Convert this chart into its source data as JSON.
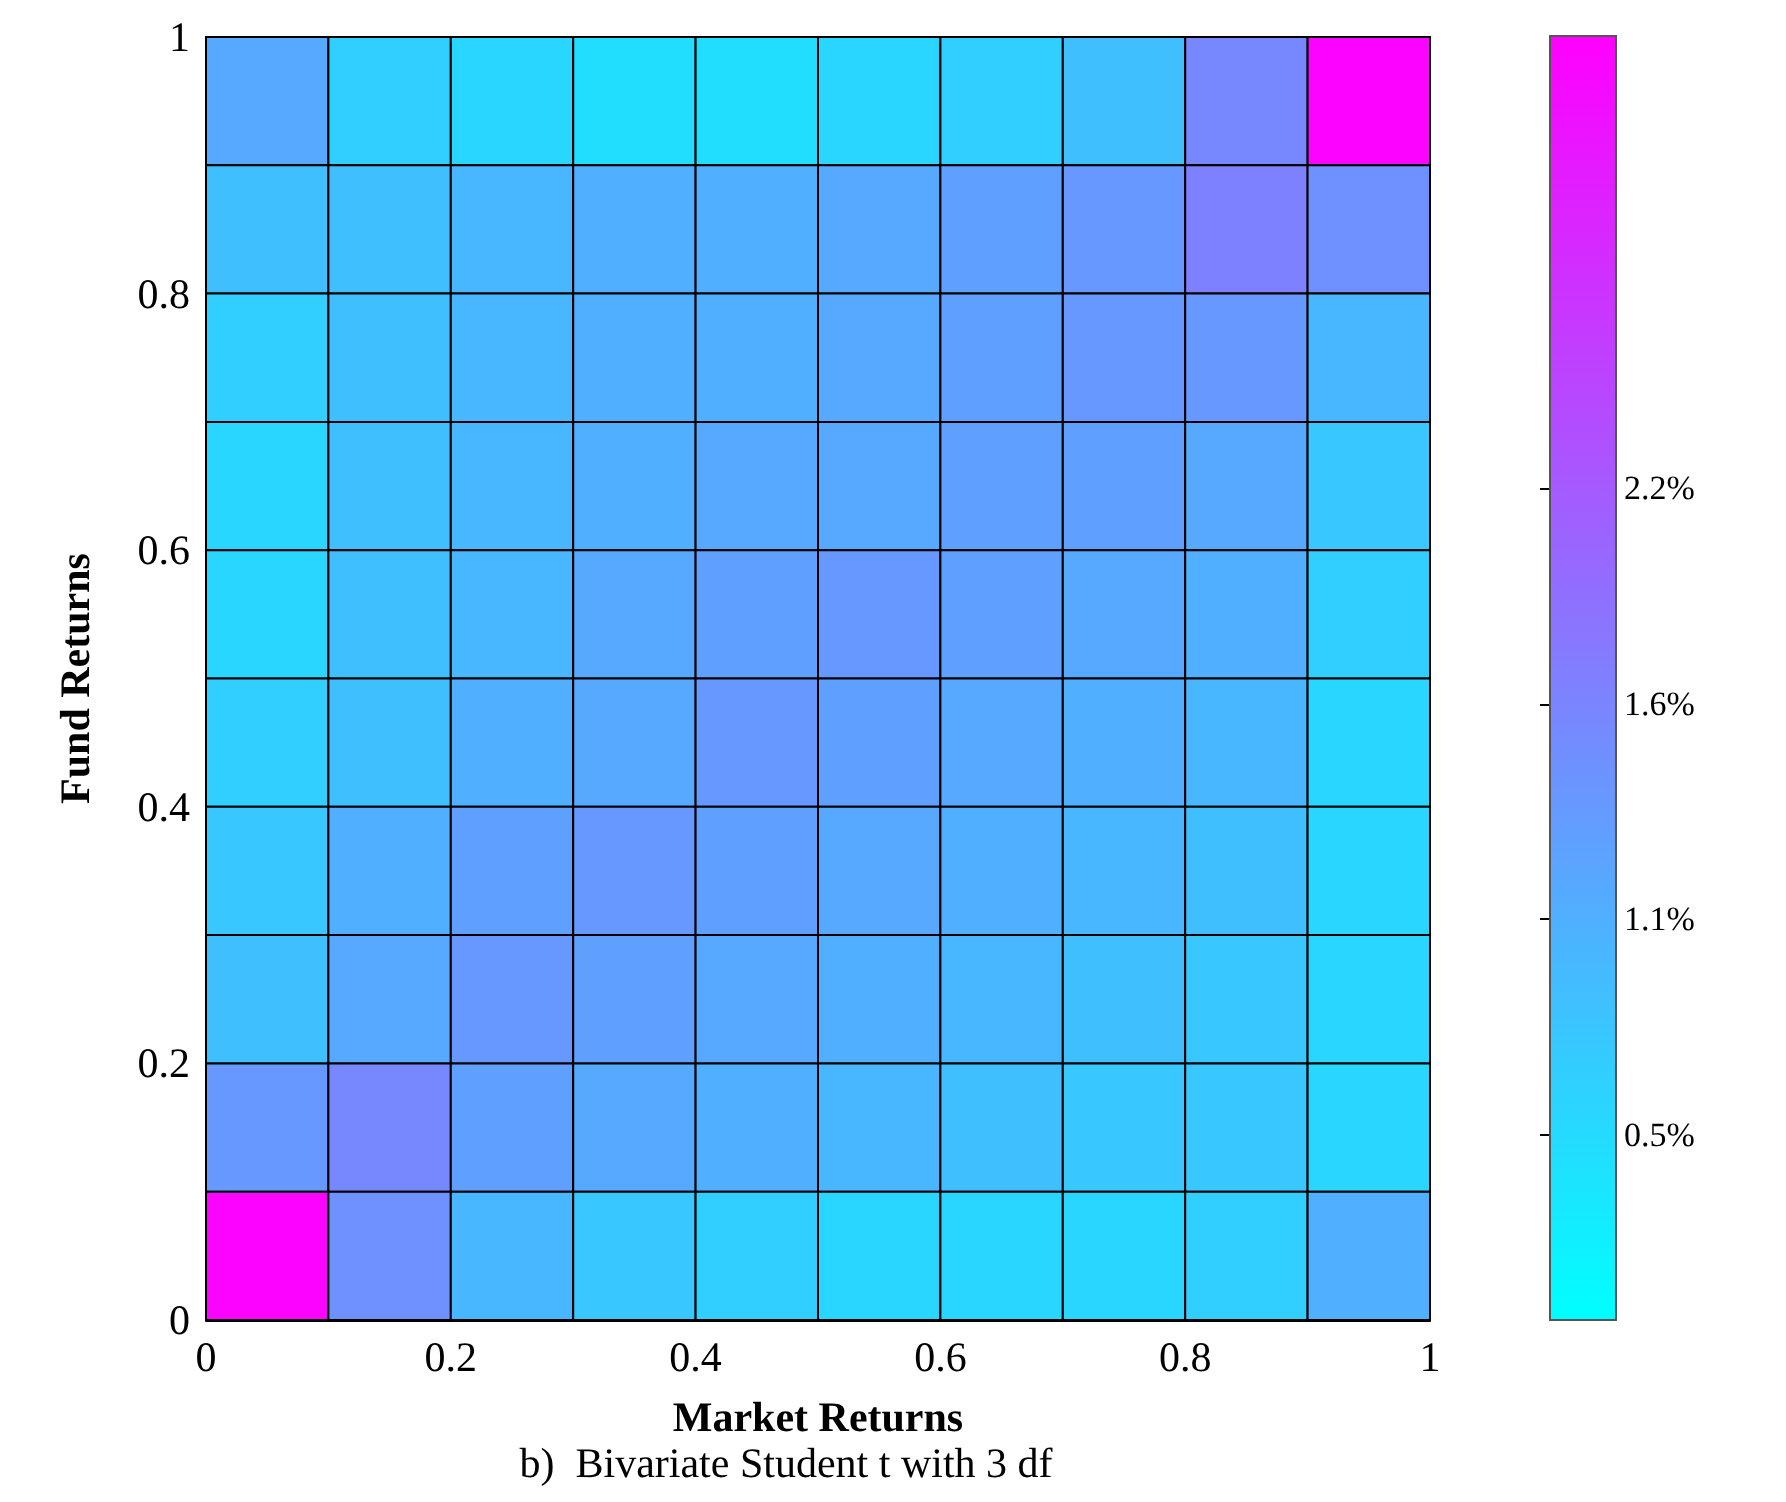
{
  "chart_data": {
    "type": "heatmap",
    "title": "b)  Bivariate Student t with 3 df",
    "xlabel": "Market Returns",
    "ylabel": "Fund Returns",
    "xlim": [
      0,
      1
    ],
    "xticks": [
      0,
      0.2,
      0.4,
      0.6,
      0.8,
      1
    ],
    "ylim": [
      0,
      1
    ],
    "yticks": [
      0,
      0.2,
      0.4,
      0.6,
      0.8,
      1
    ],
    "clim": [
      0.08,
      3.35
    ],
    "cticks": [
      {
        "value": 0.55,
        "label": "0.5%"
      },
      {
        "value": 1.1,
        "label": "1.1%"
      },
      {
        "value": 1.65,
        "label": "1.6%"
      },
      {
        "value": 2.2,
        "label": "2.2%"
      }
    ],
    "cells": [
      [
        1.2,
        0.7,
        0.6,
        0.5,
        0.5,
        0.6,
        0.7,
        0.9,
        1.6,
        3.3
      ],
      [
        0.9,
        0.9,
        1.0,
        1.1,
        1.1,
        1.2,
        1.3,
        1.4,
        1.7,
        1.5
      ],
      [
        0.7,
        0.9,
        1.0,
        1.1,
        1.1,
        1.2,
        1.3,
        1.4,
        1.4,
        1.0
      ],
      [
        0.6,
        0.9,
        1.0,
        1.1,
        1.2,
        1.2,
        1.3,
        1.3,
        1.2,
        0.8
      ],
      [
        0.6,
        0.9,
        1.0,
        1.2,
        1.3,
        1.4,
        1.3,
        1.2,
        1.1,
        0.7
      ],
      [
        0.7,
        0.9,
        1.1,
        1.2,
        1.4,
        1.3,
        1.2,
        1.1,
        1.0,
        0.6
      ],
      [
        0.8,
        1.1,
        1.3,
        1.4,
        1.3,
        1.2,
        1.1,
        1.0,
        0.9,
        0.6
      ],
      [
        0.9,
        1.2,
        1.4,
        1.3,
        1.2,
        1.1,
        1.0,
        0.9,
        0.8,
        0.6
      ],
      [
        1.4,
        1.6,
        1.3,
        1.2,
        1.1,
        1.0,
        0.9,
        0.8,
        0.8,
        0.6
      ],
      [
        3.3,
        1.5,
        1.0,
        0.8,
        0.7,
        0.6,
        0.6,
        0.6,
        0.7,
        1.1
      ]
    ]
  }
}
